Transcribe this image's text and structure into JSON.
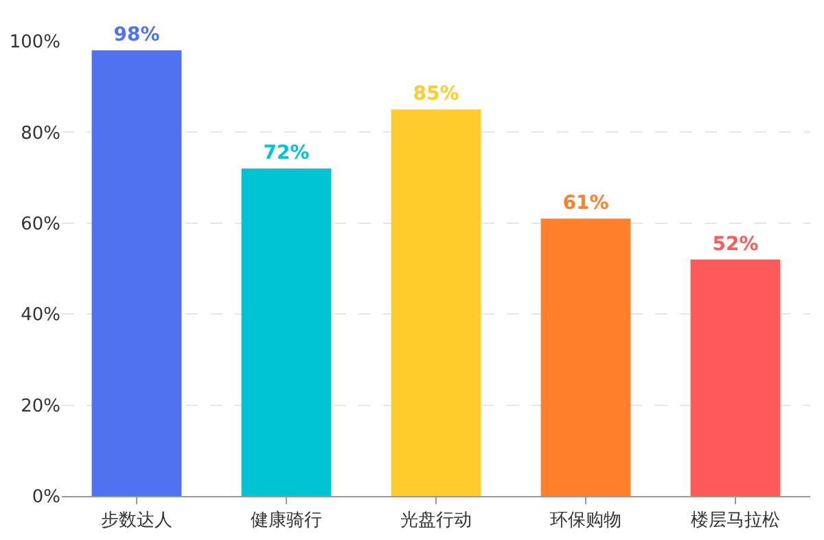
{
  "chart_data": {
    "type": "bar",
    "categories": [
      "步数达人",
      "健康骑行",
      "光盘行动",
      "环保购物",
      "楼层马拉松"
    ],
    "values": [
      98,
      72,
      85,
      61,
      52
    ],
    "colors": [
      "#4e72f0",
      "#00c4d2",
      "#ffcc2b",
      "#ff7f2b",
      "#ff5a5a"
    ],
    "value_labels": [
      "98%",
      "72%",
      "85%",
      "61%",
      "52%"
    ],
    "ylim": [
      0,
      100
    ],
    "yticks": [
      {
        "value": 0,
        "label": "0%"
      },
      {
        "value": 20,
        "label": "20%"
      },
      {
        "value": 40,
        "label": "40%"
      },
      {
        "value": 60,
        "label": "60%"
      },
      {
        "value": 80,
        "label": "80%"
      },
      {
        "value": 100,
        "label": "100%"
      }
    ],
    "grid": "y"
  }
}
